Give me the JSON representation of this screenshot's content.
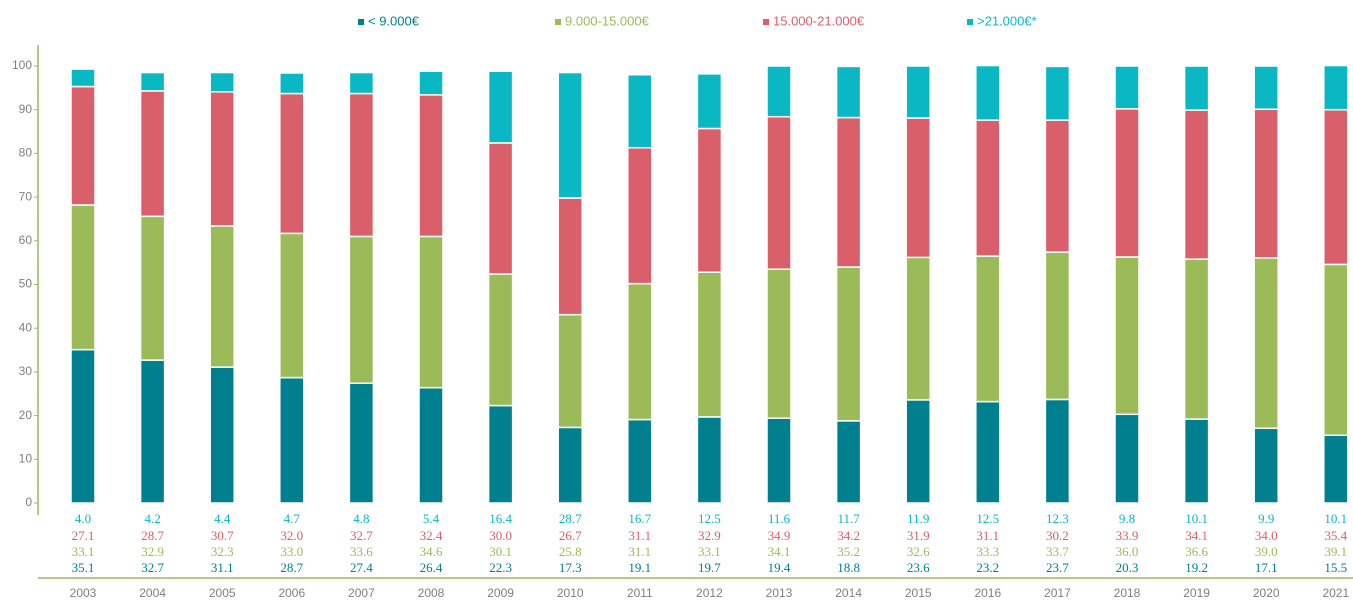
{
  "chart_data": {
    "type": "stacked_bar",
    "categories": [
      "2003",
      "2004",
      "2005",
      "2006",
      "2007",
      "2008",
      "2009",
      "2010",
      "2011",
      "2012",
      "2013",
      "2014",
      "2015",
      "2016",
      "2017",
      "2018",
      "2019",
      "2020",
      "2021"
    ],
    "series": [
      {
        "name": "< 9.000€",
        "color": "#007f8f",
        "values": [
          35.1,
          32.7,
          31.1,
          28.7,
          27.4,
          26.4,
          22.3,
          17.3,
          19.1,
          19.7,
          19.4,
          18.8,
          23.6,
          23.2,
          23.7,
          20.3,
          19.2,
          17.1,
          15.5
        ],
        "value_labels": [
          "35.1",
          "32.7",
          "31.1",
          "28.7",
          "27.4",
          "26.4",
          "22.3",
          "17.3",
          "19.1",
          "19.7",
          "19.4",
          "18.8",
          "23.6",
          "23.2",
          "23.7",
          "20.3",
          "19.2",
          "17.1",
          "15.5"
        ]
      },
      {
        "name": "9.000-15.000€",
        "color": "#9bbb59",
        "values": [
          33.1,
          32.9,
          32.3,
          33,
          33.6,
          34.6,
          30.1,
          25.8,
          31.1,
          33.1,
          34.1,
          35.2,
          32.6,
          33.3,
          33.7,
          36,
          36.6,
          39,
          39.1
        ],
        "value_labels": [
          "33.1",
          "32.9",
          "32.3",
          "33.0",
          "33.6",
          "34.6",
          "30.1",
          "25.8",
          "31.1",
          "33.1",
          "34.1",
          "35.2",
          "32.6",
          "33.3",
          "33.7",
          "36.0",
          "36.6",
          "39.0",
          "39.1"
        ]
      },
      {
        "name": "15.000-21.000€",
        "color": "#d9606a",
        "values": [
          27.1,
          28.7,
          30.7,
          32,
          32.7,
          32.4,
          30,
          26.7,
          31.1,
          32.9,
          34.9,
          34.2,
          31.9,
          31.1,
          30.2,
          33.9,
          34.1,
          34,
          35.4
        ],
        "value_labels": [
          "27.1",
          "28.7",
          "30.7",
          "32.0",
          "32.7",
          "32.4",
          "30.0",
          "26.7",
          "31.1",
          "32.9",
          "34.9",
          "34.2",
          "31.9",
          "31.1",
          "30.2",
          "33.9",
          "34.1",
          "34.0",
          "35.4"
        ]
      },
      {
        "name": ">21.000€*",
        "color": "#0ab8c4",
        "values": [
          4,
          4.2,
          4.4,
          4.7,
          4.8,
          5.4,
          16.4,
          28.7,
          16.7,
          12.5,
          11.6,
          11.7,
          11.9,
          12.5,
          12.3,
          9.8,
          10.1,
          9.9,
          10.1
        ],
        "value_labels": [
          "4.0",
          "4.2",
          "4.4",
          "4.7",
          "4.8",
          "5.4",
          "16.4",
          "28.7",
          "16.7",
          "12.5",
          "11.6",
          "11.7",
          "11.9",
          "12.5",
          "12.3",
          "9.8",
          "10.1",
          "9.9",
          "10.1"
        ]
      }
    ],
    "ylim": [
      0,
      100
    ],
    "yticks": [
      0,
      10,
      20,
      30,
      40,
      50,
      60,
      70,
      80,
      90,
      100
    ],
    "legend": "top"
  }
}
